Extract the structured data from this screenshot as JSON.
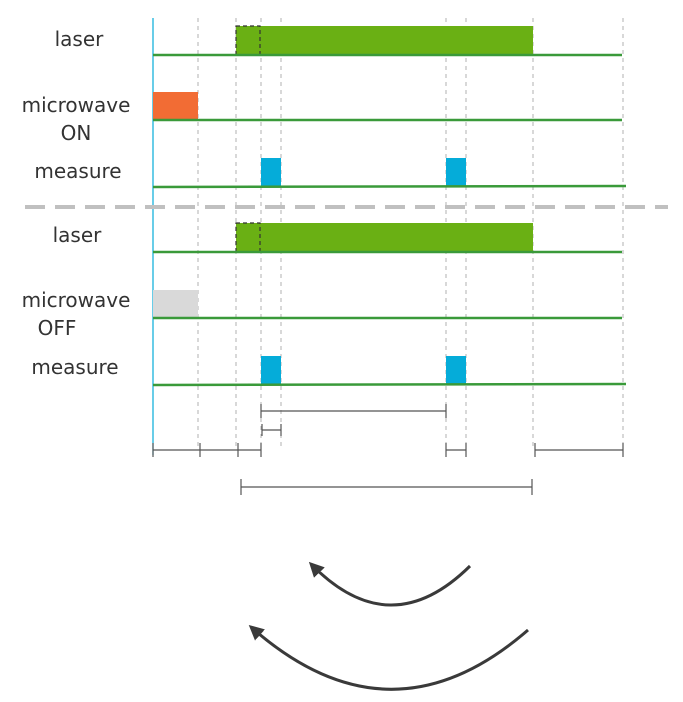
{
  "colors": {
    "baseline": "#3a9a3a",
    "laser": "#6ab014",
    "microwave_on": "#f26c34",
    "microwave_off": "#d9d9d9",
    "measure": "#05acd9",
    "separator": "#c0c0c0",
    "guide": "#b0b0b0",
    "timeline": "#555555",
    "arrow": "#3a3a3a",
    "text": "#333333"
  },
  "sections": [
    {
      "id": "microwave-on",
      "channels": [
        {
          "id": "laser",
          "lines": [
            "laser"
          ]
        },
        {
          "id": "microwave",
          "lines": [
            "microwave",
            "ON"
          ]
        },
        {
          "id": "measure",
          "lines": [
            "measure"
          ]
        }
      ]
    },
    {
      "id": "microwave-off",
      "channels": [
        {
          "id": "laser",
          "lines": [
            "laser"
          ]
        },
        {
          "id": "microwave",
          "lines": [
            "microwave",
            "OFF"
          ]
        },
        {
          "id": "measure",
          "lines": [
            "measure"
          ]
        }
      ]
    }
  ],
  "curved_arrows": [
    {
      "id": "inner-arrow"
    },
    {
      "id": "outer-arrow"
    }
  ]
}
